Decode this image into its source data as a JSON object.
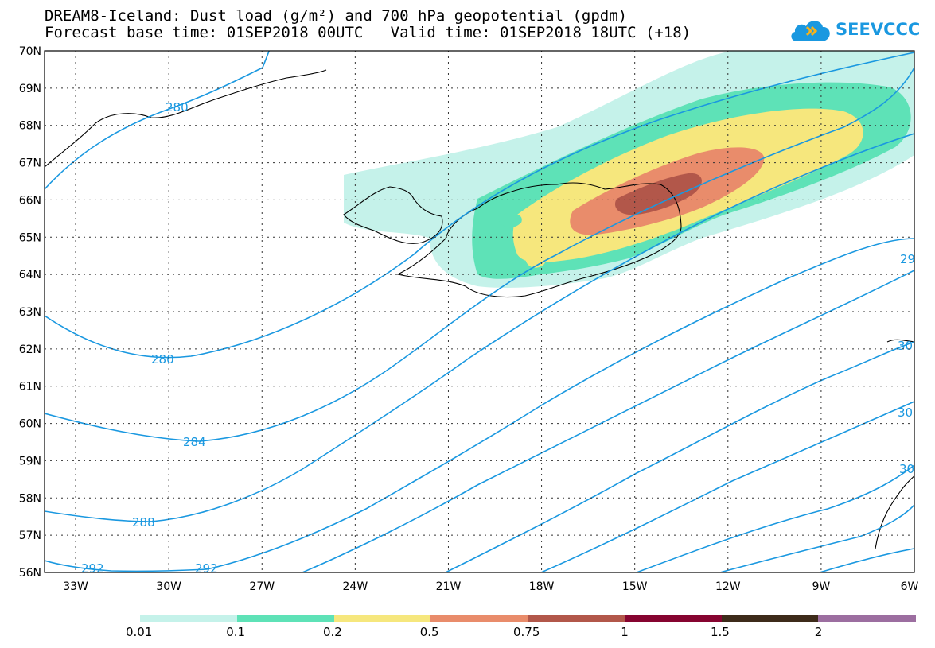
{
  "header": {
    "title_line1": "DREAM8-Iceland: Dust load (g/m²) and 700 hPa geopotential (gpdm)",
    "title_line2": "Forecast base time: 01SEP2018 00UTC   Valid time: 01SEP2018 18UTC (+18)"
  },
  "logo": {
    "text": "SEEVCCC",
    "icon": "cloud-logo-icon",
    "color": "#1a98e0"
  },
  "map": {
    "lat_labels": [
      "70N",
      "69N",
      "68N",
      "67N",
      "66N",
      "65N",
      "64N",
      "63N",
      "62N",
      "61N",
      "60N",
      "59N",
      "58N",
      "57N",
      "56N"
    ],
    "lon_labels": [
      "33W",
      "30W",
      "27W",
      "24W",
      "21W",
      "18W",
      "15W",
      "12W",
      "9W",
      "6W"
    ],
    "contour_color": "#1a98e0",
    "contour_labels": [
      {
        "id": "c280a",
        "text": "280"
      },
      {
        "id": "c280b",
        "text": "280"
      },
      {
        "id": "c284",
        "text": "284"
      },
      {
        "id": "c288",
        "text": "288"
      },
      {
        "id": "c292a",
        "text": "292"
      },
      {
        "id": "c292b",
        "text": "292"
      },
      {
        "id": "c29e",
        "text": "29"
      },
      {
        "id": "c30a",
        "text": "30"
      },
      {
        "id": "c30b",
        "text": "30"
      },
      {
        "id": "c30c",
        "text": "30"
      }
    ],
    "dust_colors": [
      "#c5f2ea",
      "#5ee2b7",
      "#f6e77d",
      "#e98c6b",
      "#b2574a"
    ]
  },
  "legend": {
    "colors": [
      "#c5f2ea",
      "#5ee2b7",
      "#f6e77d",
      "#e98c6b",
      "#b2574a",
      "#860430",
      "#3d2b1a",
      "#9c6ea0"
    ],
    "labels": [
      "0.01",
      "0.1",
      "0.2",
      "0.5",
      "0.75",
      "1",
      "1.5",
      "2"
    ]
  }
}
